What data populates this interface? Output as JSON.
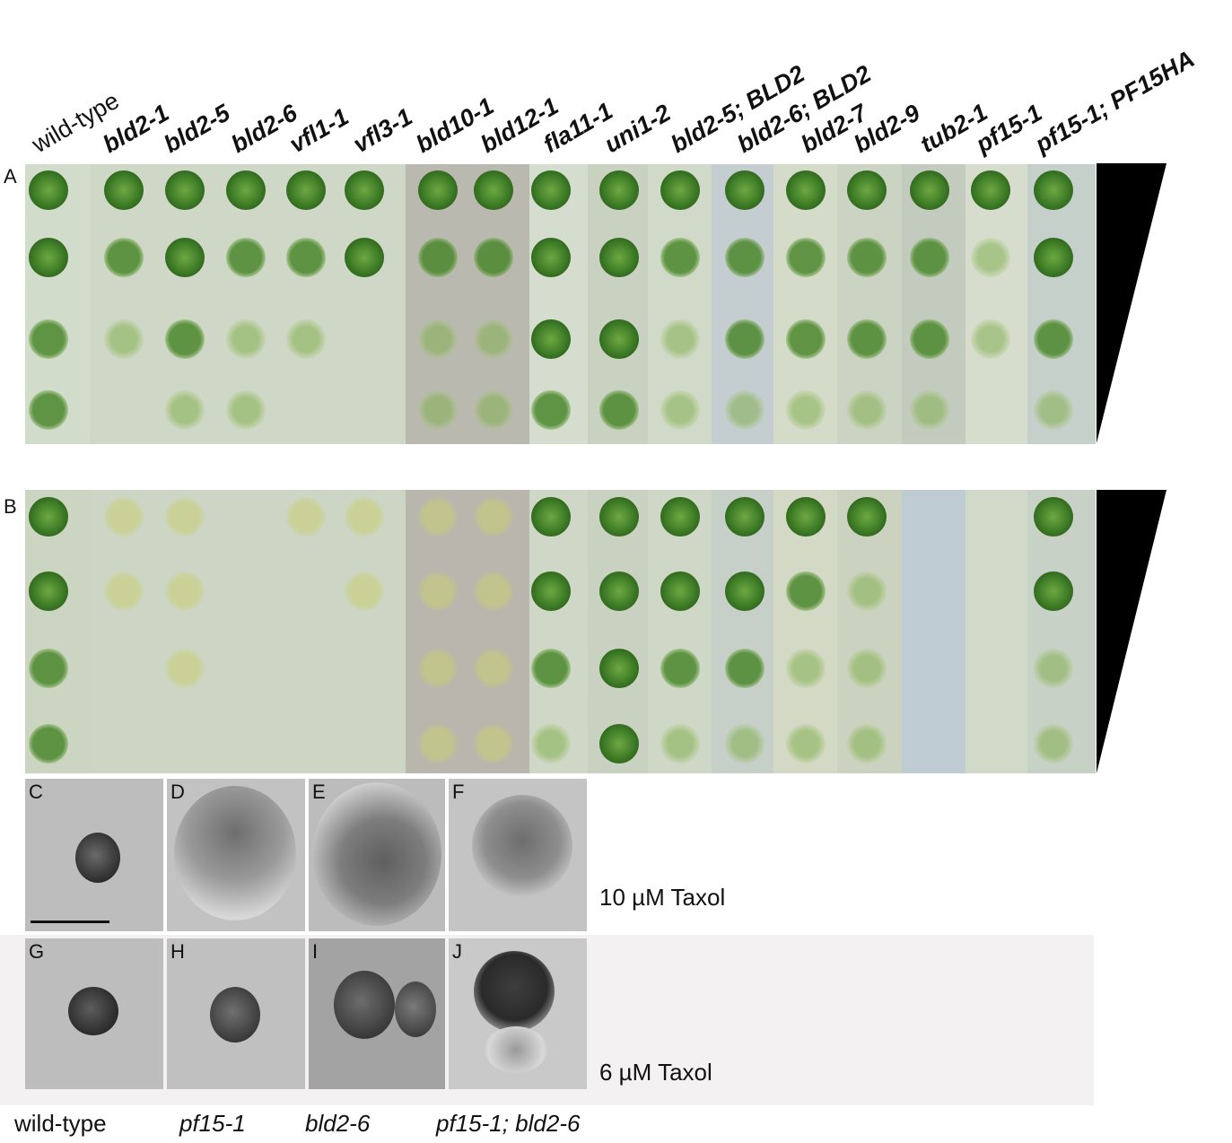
{
  "strains": [
    "wild-type",
    "bld2-1",
    "bld2-5",
    "bld2-6",
    "vfl1-1",
    "vfl3-1",
    "bld10-1",
    "bld12-1",
    "fla11-1",
    "uni1-2",
    "bld2-5; BLD2",
    "bld2-6; BLD2",
    "bld2-7",
    "bld2-9",
    "tub2-1",
    "pf15-1",
    "pf15-1; PF15HA"
  ],
  "panels": {
    "A": "A",
    "B": "B",
    "C": "C",
    "D": "D",
    "E": "E",
    "F": "F",
    "G": "G",
    "H": "H",
    "I": "I",
    "J": "J"
  },
  "conditions": {
    "top": "10 µM Taxol",
    "bottom": "6 µM Taxol"
  },
  "bottom_labels": [
    "wild-type",
    "pf15-1",
    "bld2-6",
    "pf15-1; bld2-6"
  ],
  "colors": {
    "plate_bg": "#cfd9c6",
    "colony_dark": "#2f6a1e",
    "colony_light": "#8fbf5a",
    "wedge": "#000000"
  }
}
